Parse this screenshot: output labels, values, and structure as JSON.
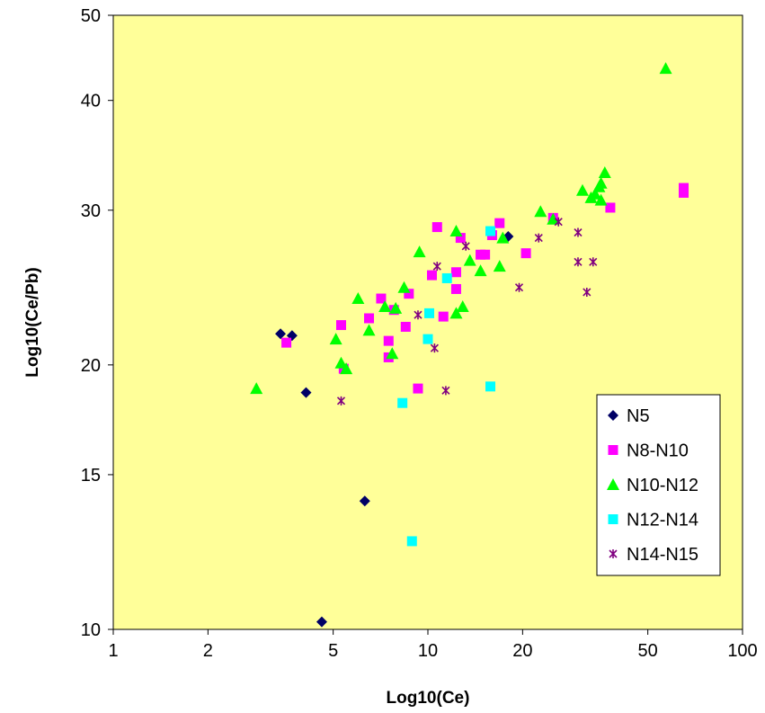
{
  "chart_data": {
    "type": "scatter",
    "title": "",
    "xlabel": "Log10(Ce)",
    "ylabel": "Log10(Ce/Pb)",
    "x_scale": "log",
    "y_scale": "log",
    "xlim": [
      1,
      100
    ],
    "ylim": [
      10,
      50
    ],
    "x_ticks": [
      1,
      2,
      5,
      10,
      20,
      50,
      100
    ],
    "y_ticks": [
      10,
      15,
      20,
      30,
      40,
      50
    ],
    "grid": false,
    "legend_position": "lower-right",
    "plot_background": "#FFFF99",
    "series": [
      {
        "name": "N5",
        "marker": "diamond",
        "color": "#000066",
        "points": [
          [
            3.4,
            21.7
          ],
          [
            3.7,
            21.6
          ],
          [
            4.1,
            18.6
          ],
          [
            18.0,
            28.0
          ],
          [
            6.3,
            14.0
          ],
          [
            4.6,
            10.2
          ]
        ]
      },
      {
        "name": "N8-N10",
        "marker": "square",
        "color": "#FF00FF",
        "points": [
          [
            3.55,
            21.2
          ],
          [
            5.3,
            22.2
          ],
          [
            5.4,
            19.8
          ],
          [
            6.5,
            22.6
          ],
          [
            7.1,
            23.8
          ],
          [
            7.5,
            21.3
          ],
          [
            7.5,
            20.4
          ],
          [
            7.8,
            23.1
          ],
          [
            8.5,
            22.1
          ],
          [
            8.7,
            24.1
          ],
          [
            9.3,
            18.8
          ],
          [
            10.3,
            25.3
          ],
          [
            10.7,
            28.7
          ],
          [
            11.2,
            22.7
          ],
          [
            12.3,
            25.5
          ],
          [
            12.3,
            24.4
          ],
          [
            12.7,
            27.9
          ],
          [
            14.7,
            26.7
          ],
          [
            15.2,
            26.7
          ],
          [
            16.0,
            28.1
          ],
          [
            16.9,
            29.0
          ],
          [
            20.5,
            26.8
          ],
          [
            25.0,
            29.4
          ],
          [
            38.0,
            30.2
          ],
          [
            65.0,
            31.8
          ],
          [
            65.0,
            31.4
          ]
        ]
      },
      {
        "name": "N10-N12",
        "marker": "triangle",
        "color": "#00FF00",
        "points": [
          [
            2.85,
            18.8
          ],
          [
            5.1,
            21.4
          ],
          [
            5.3,
            20.1
          ],
          [
            5.5,
            19.8
          ],
          [
            6.0,
            23.8
          ],
          [
            6.5,
            21.9
          ],
          [
            7.3,
            23.3
          ],
          [
            7.7,
            20.6
          ],
          [
            7.9,
            23.2
          ],
          [
            8.4,
            24.5
          ],
          [
            9.4,
            26.9
          ],
          [
            12.3,
            28.4
          ],
          [
            12.3,
            22.9
          ],
          [
            12.9,
            23.3
          ],
          [
            13.6,
            26.3
          ],
          [
            14.7,
            25.6
          ],
          [
            16.9,
            25.9
          ],
          [
            17.3,
            27.9
          ],
          [
            22.8,
            29.9
          ],
          [
            25.0,
            29.3
          ],
          [
            31.0,
            31.6
          ],
          [
            33.0,
            31.0
          ],
          [
            34.0,
            31.3
          ],
          [
            35.0,
            31.9
          ],
          [
            35.5,
            30.8
          ],
          [
            35.5,
            32.2
          ],
          [
            36.5,
            33.1
          ],
          [
            57.0,
            43.5
          ]
        ]
      },
      {
        "name": "N12-N14",
        "marker": "square",
        "color": "#00FFFF",
        "points": [
          [
            8.3,
            18.1
          ],
          [
            8.9,
            12.6
          ],
          [
            10.0,
            21.4
          ],
          [
            10.1,
            22.9
          ],
          [
            11.5,
            25.1
          ],
          [
            15.8,
            18.9
          ],
          [
            15.8,
            28.4
          ]
        ]
      },
      {
        "name": "N14-N15",
        "marker": "asterisk",
        "color": "#800080",
        "points": [
          [
            5.3,
            18.2
          ],
          [
            9.3,
            22.8
          ],
          [
            10.5,
            20.9
          ],
          [
            10.7,
            25.9
          ],
          [
            11.4,
            18.7
          ],
          [
            13.2,
            27.3
          ],
          [
            19.5,
            24.5
          ],
          [
            22.5,
            27.9
          ],
          [
            26.0,
            29.1
          ],
          [
            30.0,
            28.3
          ],
          [
            30.0,
            26.2
          ],
          [
            32.0,
            24.2
          ],
          [
            33.5,
            26.2
          ]
        ]
      }
    ]
  }
}
